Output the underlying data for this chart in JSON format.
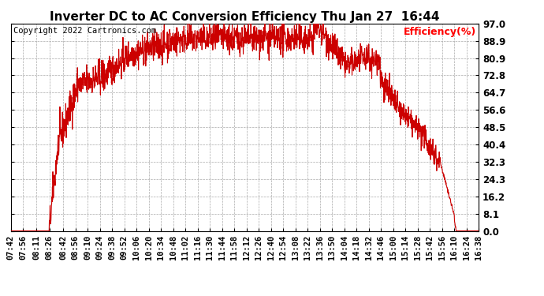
{
  "title": "Inverter DC to AC Conversion Efficiency Thu Jan 27  16:44",
  "ylabel": "Efficiency(%)",
  "ylabel_color": "#ff0000",
  "copyright": "Copyright 2022 Cartronics.com",
  "background_color": "#ffffff",
  "plot_bg_color": "#ffffff",
  "grid_color": "#aaaaaa",
  "line_color": "#cc0000",
  "ylim": [
    0.0,
    97.0
  ],
  "yticks": [
    0.0,
    8.1,
    16.2,
    24.3,
    32.3,
    40.4,
    48.5,
    56.6,
    64.7,
    72.8,
    80.9,
    88.9,
    97.0
  ],
  "xtick_labels": [
    "07:42",
    "07:56",
    "08:11",
    "08:26",
    "08:42",
    "08:56",
    "09:10",
    "09:24",
    "09:38",
    "09:52",
    "10:06",
    "10:20",
    "10:34",
    "10:48",
    "11:02",
    "11:16",
    "11:30",
    "11:44",
    "11:58",
    "12:12",
    "12:26",
    "12:40",
    "12:54",
    "13:08",
    "13:22",
    "13:36",
    "13:50",
    "14:04",
    "14:18",
    "14:32",
    "14:46",
    "15:00",
    "15:14",
    "15:28",
    "15:42",
    "15:56",
    "16:10",
    "16:24",
    "16:38"
  ],
  "title_fontsize": 11,
  "tick_fontsize": 7.5,
  "copyright_fontsize": 7.5
}
